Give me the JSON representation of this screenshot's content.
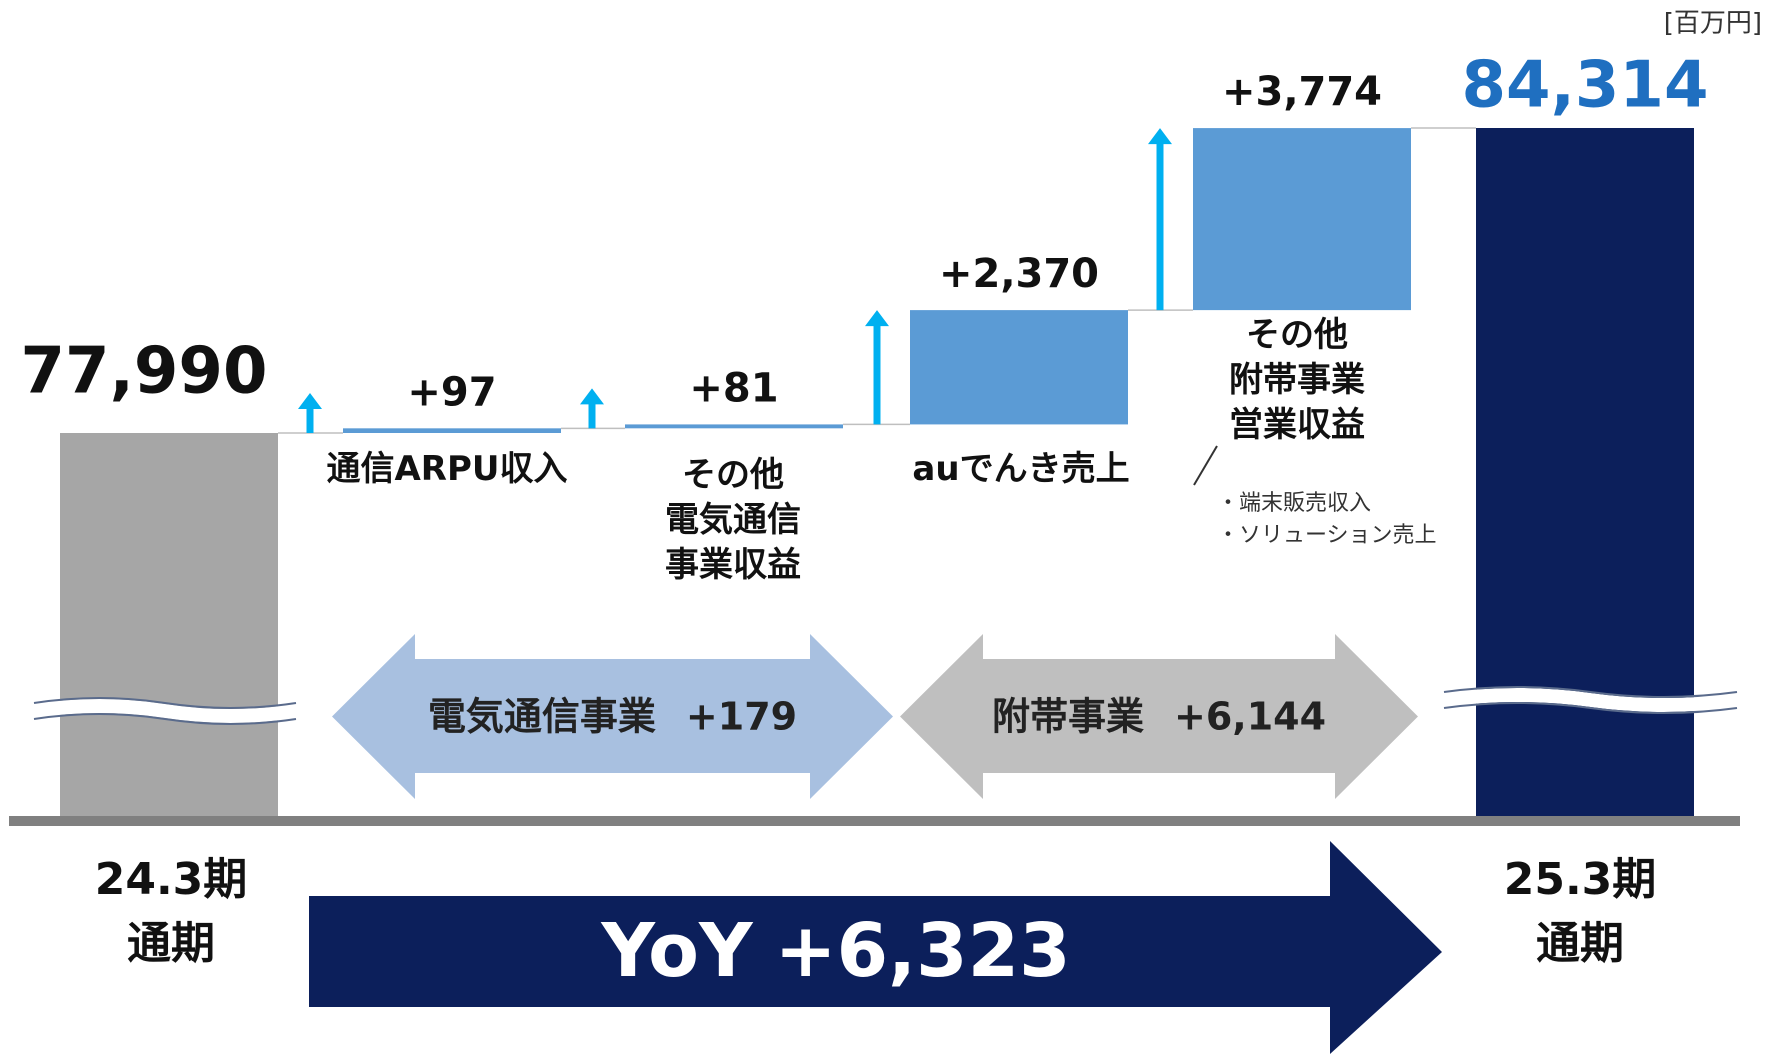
{
  "chart_data": {
    "type": "waterfall",
    "unit": "[百万円]",
    "categories": [
      "24.3期\n通期",
      "通信ARPU収入",
      "その他\n電気通信\n事業収益",
      "auでんき売上",
      "その他\n附帯事業\n営業収益",
      "25.3期\n通期"
    ],
    "measures": [
      "total",
      "delta",
      "delta",
      "delta",
      "delta",
      "total"
    ],
    "values": [
      77990,
      97,
      81,
      2370,
      3774,
      84314
    ],
    "value_labels": [
      "77,990",
      "+97",
      "+81",
      "+2,370",
      "+3,774",
      "84,314"
    ],
    "colors": [
      "#a6a6a6",
      "#5b9bd5",
      "#5b9bd5",
      "#5b9bd5",
      "#5b9bd5",
      "#0c1f5b"
    ],
    "label_colors": [
      "#111111",
      "#111111",
      "#111111",
      "#111111",
      "#111111",
      "#1f6fc0"
    ],
    "notes": [
      "・端末販売収入",
      "・ソリューション売上"
    ],
    "groups": [
      {
        "name": "電気通信事業",
        "value": 179,
        "value_label": "+179",
        "color": "#a8c0e0"
      },
      {
        "name": "附帯事業",
        "value": 6144,
        "value_label": "+6,144",
        "color": "#bfbfbf"
      }
    ],
    "total_change": {
      "name": "YoY",
      "value": 6323,
      "value_label": "+6,323",
      "color": "#0c1f5b"
    },
    "arrow_color": "#00b0f0"
  }
}
